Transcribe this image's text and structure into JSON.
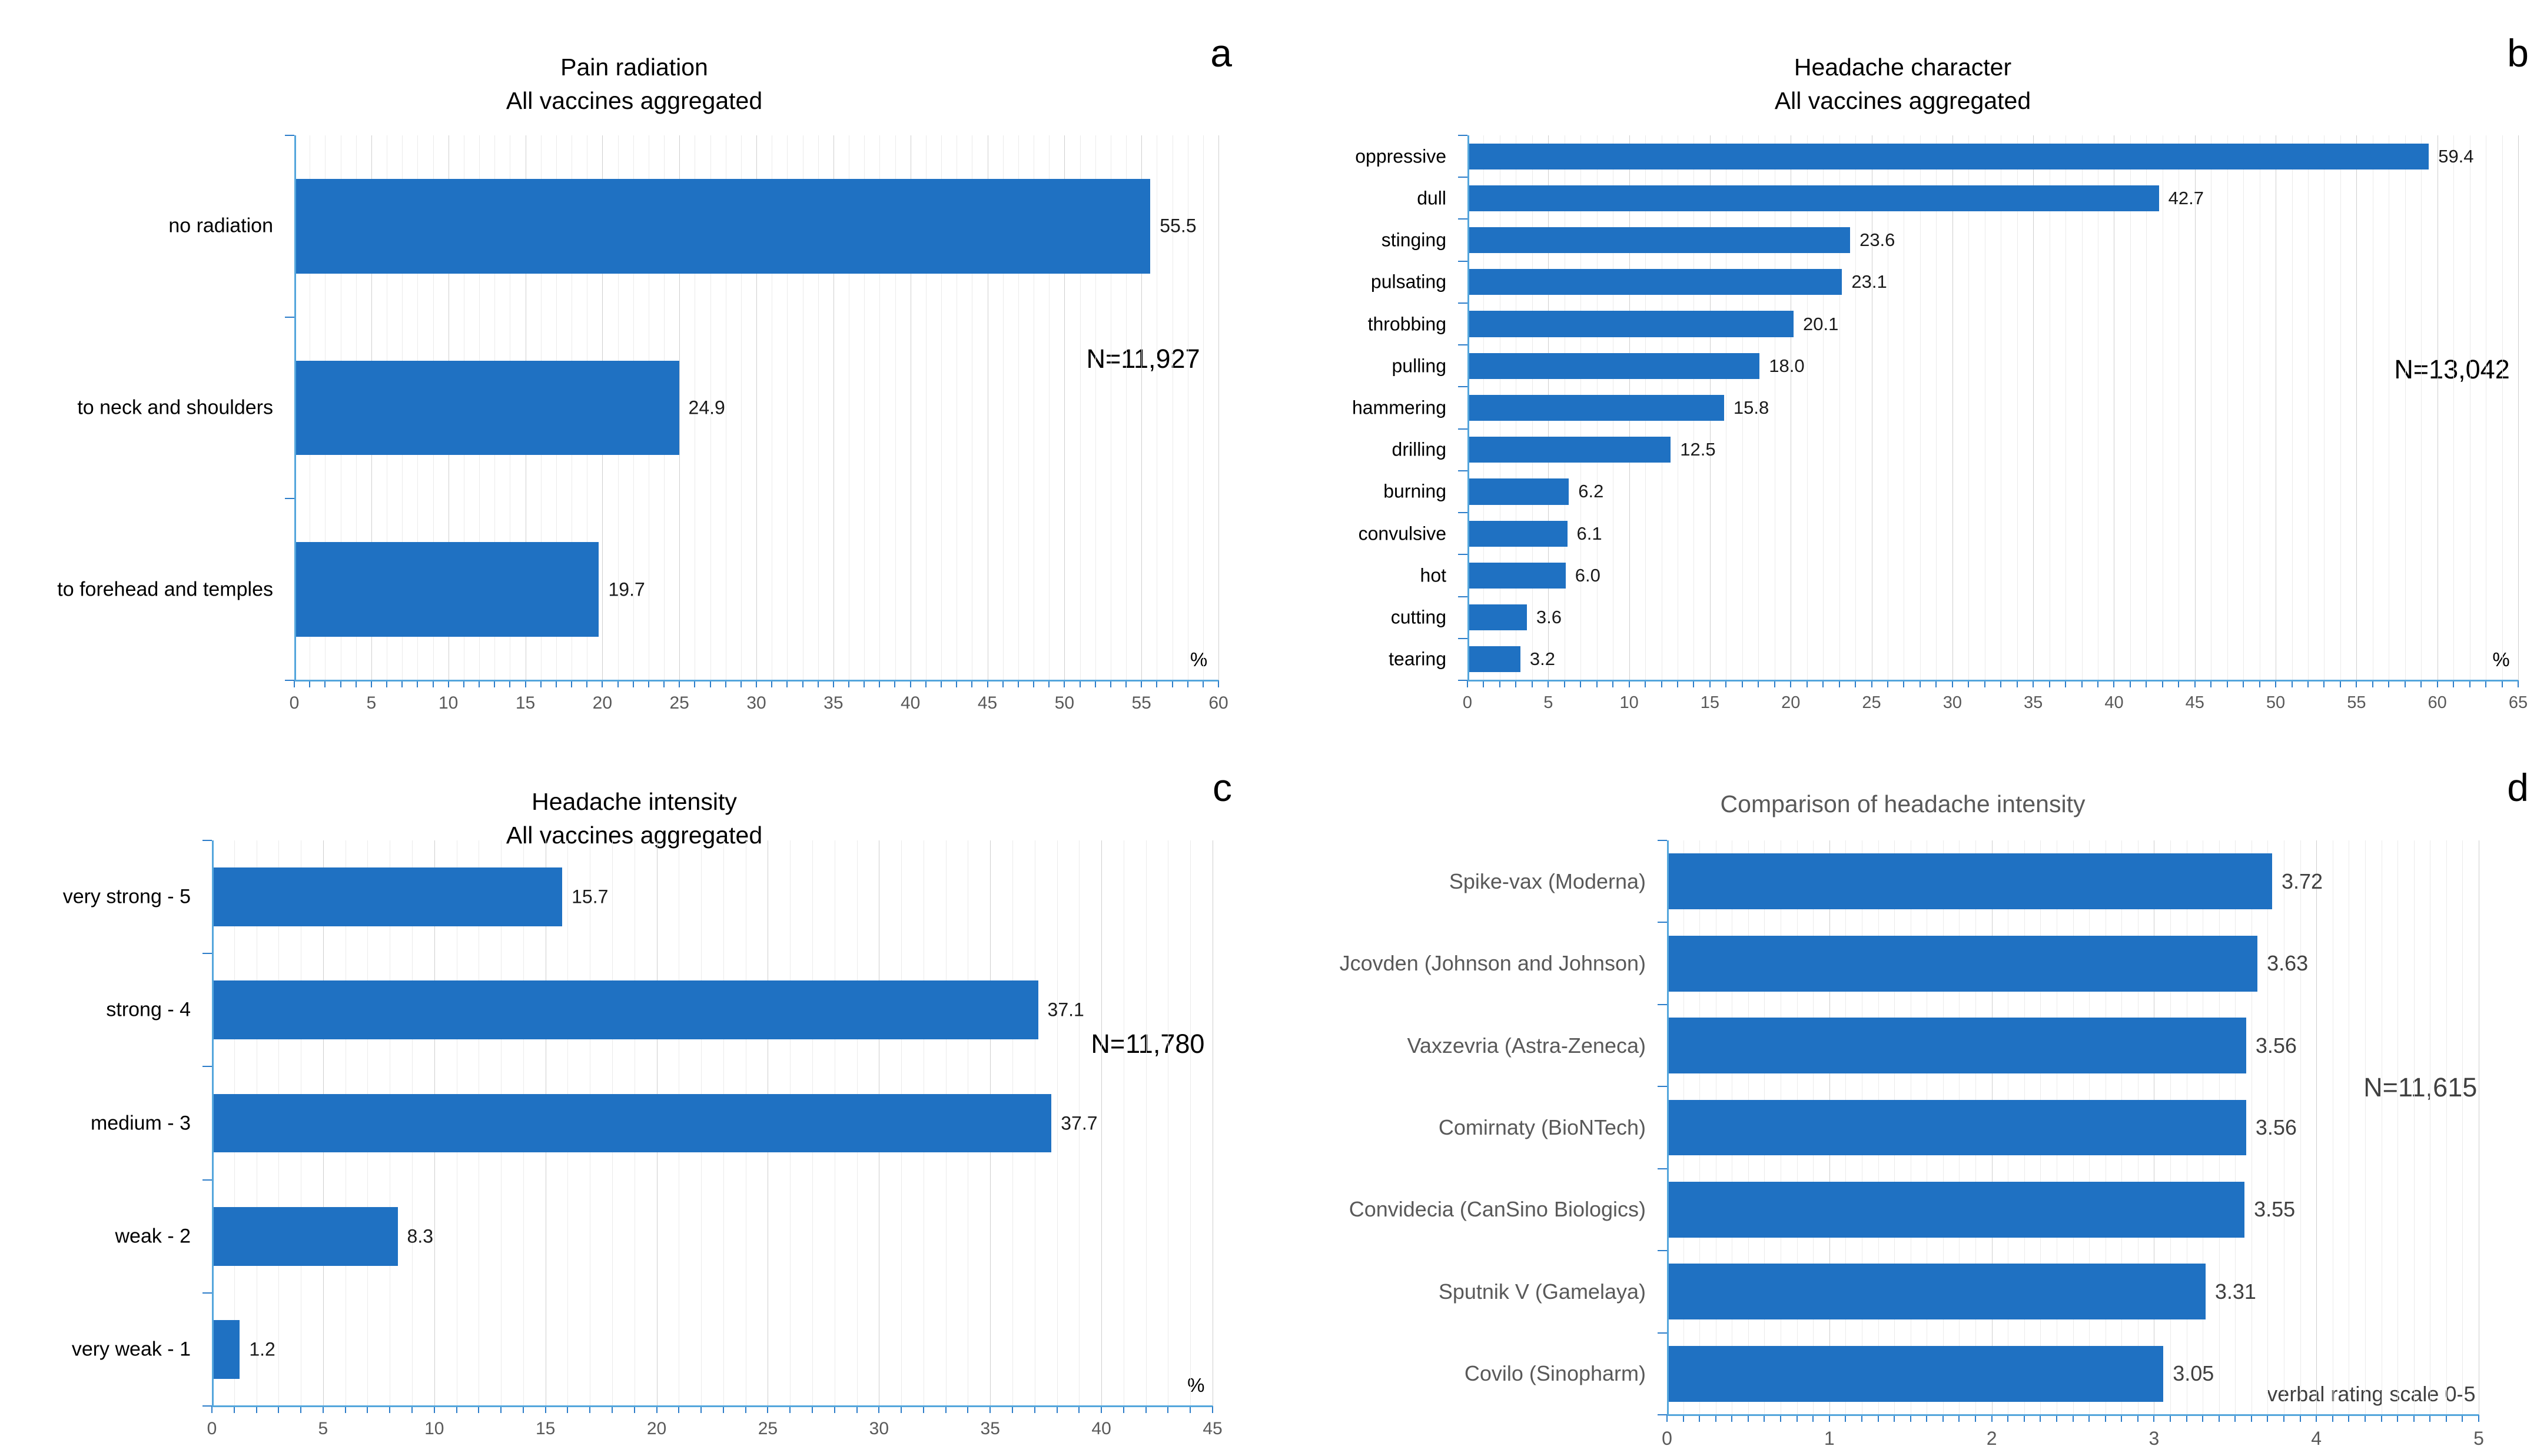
{
  "colors": {
    "bar": "#1F71C2",
    "axis_line": "#54A6DC",
    "axis_tick": "#2B7CC9",
    "gridline_minor": "#EBEBEB",
    "gridline_major": "#CFCFCF",
    "tick_label": "#595959"
  },
  "chart_data": [
    {
      "panel_letter": "a",
      "type": "bar",
      "orientation": "horizontal",
      "title": "Pain radiation",
      "subtitle": "All vaccines aggregated",
      "n_label": "N=11,927",
      "axis_caption": "%",
      "categories": [
        "no radiation",
        "to neck and shoulders",
        "to forehead and temples"
      ],
      "values": [
        55.5,
        24.9,
        19.7
      ],
      "value_labels": [
        "55.5",
        "24.9",
        "19.7"
      ],
      "xlim": [
        0,
        60
      ],
      "major_tick": 5,
      "minor_tick": 1,
      "grid": true,
      "bar_ratio": 0.52,
      "label_color": "#000000",
      "value_color": "#1A1A1A"
    },
    {
      "panel_letter": "b",
      "type": "bar",
      "orientation": "horizontal",
      "title": "Headache character",
      "subtitle": "All vaccines aggregated",
      "n_label": "N=13,042",
      "axis_caption": "%",
      "categories": [
        "oppressive",
        "dull",
        "stinging",
        "pulsating",
        "throbbing",
        "pulling",
        "hammering",
        "drilling",
        "burning",
        "convulsive",
        "hot",
        "cutting",
        "tearing"
      ],
      "values": [
        59.4,
        42.7,
        23.6,
        23.1,
        20.1,
        18.0,
        15.8,
        12.5,
        6.2,
        6.1,
        6.0,
        3.6,
        3.2
      ],
      "value_labels": [
        "59.4",
        "42.7",
        "23.6",
        "23.1",
        "20.1",
        "18.0",
        "15.8",
        "12.5",
        "6.2",
        "6.1",
        "6.0",
        "3.6",
        "3.2"
      ],
      "xlim": [
        0,
        65
      ],
      "major_tick": 5,
      "minor_tick": 1,
      "grid": true,
      "bar_ratio": 0.62,
      "label_color": "#000000",
      "value_color": "#1A1A1A"
    },
    {
      "panel_letter": "c",
      "type": "bar",
      "orientation": "horizontal",
      "title": "Headache intensity",
      "subtitle": "All vaccines aggregated",
      "n_label": "N=11,780",
      "axis_caption": "%",
      "categories": [
        "very strong - 5",
        "strong - 4",
        "medium - 3",
        "weak - 2",
        "very weak - 1"
      ],
      "values": [
        15.7,
        37.1,
        37.7,
        8.3,
        1.2
      ],
      "value_labels": [
        "15.7",
        "37.1",
        "37.7",
        "8.3",
        "1.2"
      ],
      "xlim": [
        0,
        45
      ],
      "major_tick": 5,
      "minor_tick": 1,
      "grid": true,
      "bar_ratio": 0.52,
      "label_color": "#000000",
      "value_color": "#1A1A1A"
    },
    {
      "panel_letter": "d",
      "type": "bar",
      "orientation": "horizontal",
      "title": "Comparison of headache intensity",
      "n_label": "N=11,615",
      "axis_caption": "verbal rating scale 0-5",
      "categories": [
        "Spike-vax (Moderna)",
        "Jcovden (Johnson and Johnson)",
        "Vaxzevria (Astra-Zeneca)",
        "Comirnaty (BioNTech)",
        "Convidecia (CanSino Biologics)",
        "Sputnik V (Gamelaya)",
        "Covilo (Sinopharm)"
      ],
      "values": [
        3.72,
        3.63,
        3.56,
        3.56,
        3.55,
        3.31,
        3.05
      ],
      "value_labels": [
        "3.72",
        "3.63",
        "3.56",
        "3.56",
        "3.55",
        "3.31",
        "3.05"
      ],
      "xlim": [
        0,
        5
      ],
      "major_tick": 1,
      "minor_tick": 0.1,
      "grid": true,
      "bar_ratio": 0.68,
      "label_color": "#595959",
      "value_color": "#404040"
    }
  ]
}
